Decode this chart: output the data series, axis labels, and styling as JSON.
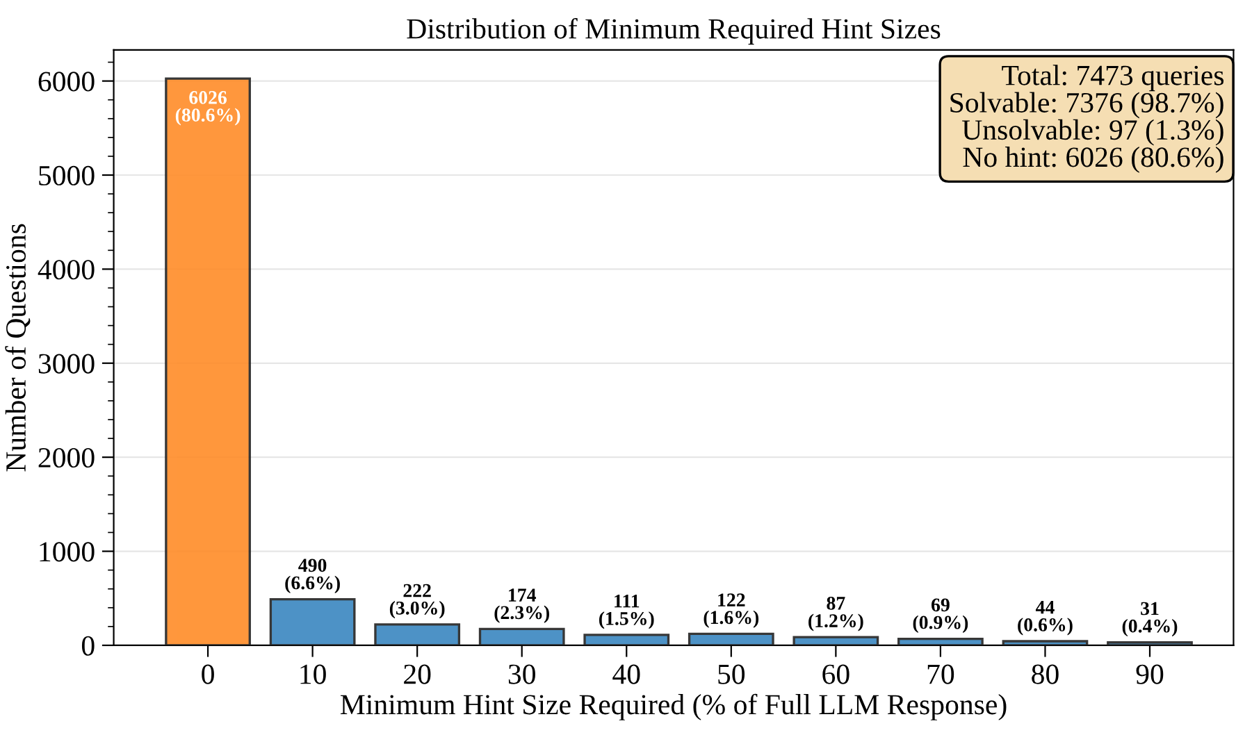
{
  "chart_data": {
    "type": "bar",
    "title": "Distribution of Minimum Required Hint Sizes",
    "xlabel": "Minimum Hint Size Required (% of Full LLM Response)",
    "ylabel": "Number of Questions",
    "categories": [
      "0",
      "10",
      "20",
      "30",
      "40",
      "50",
      "60",
      "70",
      "80",
      "90"
    ],
    "values": [
      6026,
      490,
      222,
      174,
      111,
      122,
      87,
      69,
      44,
      31
    ],
    "colors": [
      "#ff8c28",
      "#3a87c0",
      "#3a87c0",
      "#3a87c0",
      "#3a87c0",
      "#3a87c0",
      "#3a87c0",
      "#3a87c0",
      "#3a87c0",
      "#3a87c0"
    ],
    "value_labels": [
      "6026\n(80.6%)",
      "490\n(6.6%)",
      "222\n(3.0%)",
      "174\n(2.3%)",
      "111\n(1.5%)",
      "122\n(1.6%)",
      "87\n(1.2%)",
      "69\n(0.9%)",
      "44\n(0.6%)",
      "31\n(0.4%)"
    ],
    "ylim": [
      0,
      6330
    ],
    "yticks": [
      0,
      1000,
      2000,
      3000,
      4000,
      5000,
      6000
    ],
    "grid": "y",
    "annotations": [
      "Total: 7473 queries",
      "Solvable: 7376 (98.7%)",
      "Unsolvable: 97 (1.3%)",
      "No hint: 6026 (80.6%)"
    ]
  }
}
